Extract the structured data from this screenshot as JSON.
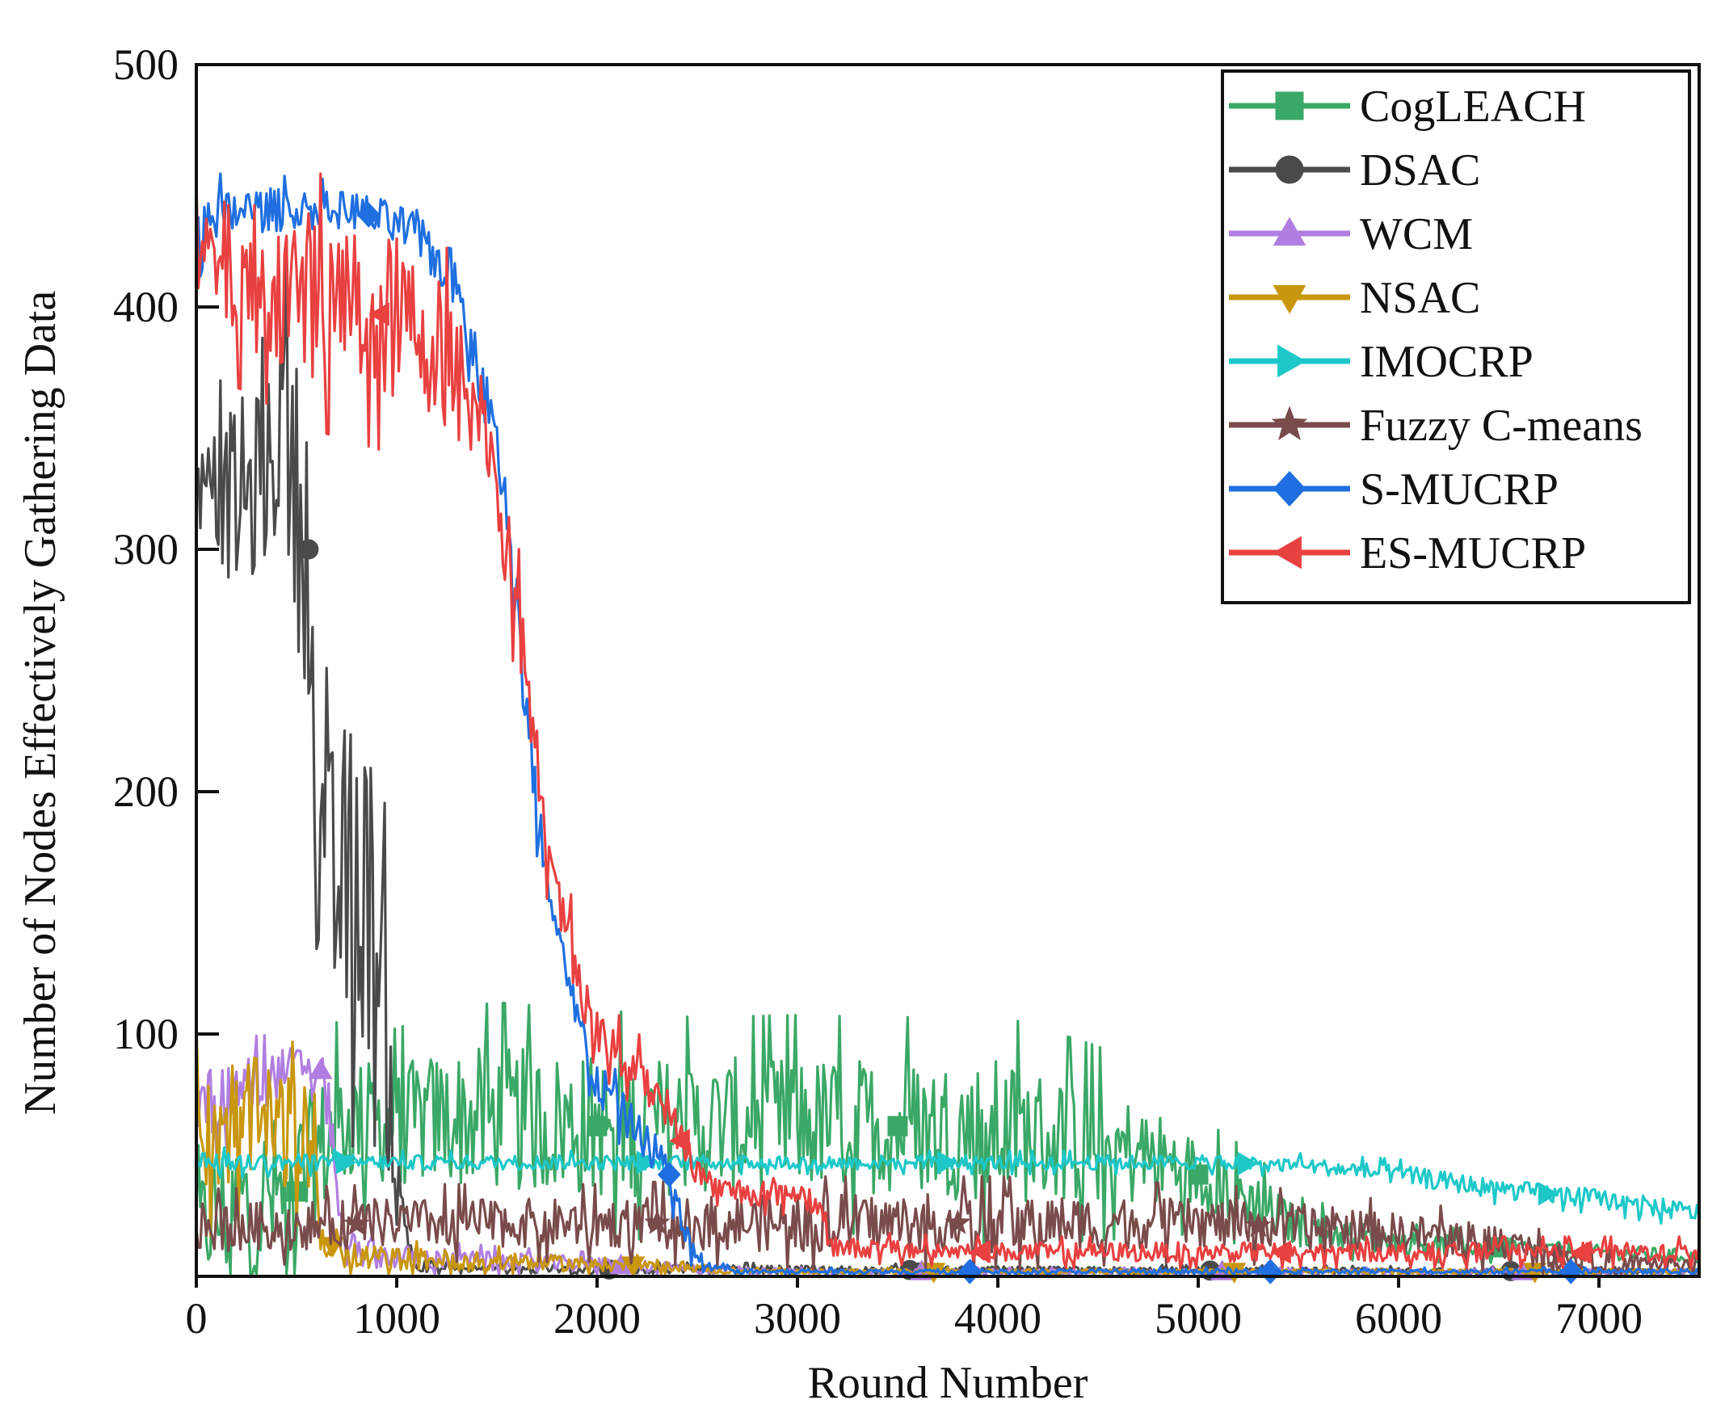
{
  "chart_data": {
    "type": "line",
    "xlabel": "Round Number",
    "ylabel": "Number of Nodes Effectively Gathering Data",
    "xlim": [
      0,
      7500
    ],
    "ylim": [
      0,
      500
    ],
    "xticks": [
      0,
      1000,
      2000,
      3000,
      4000,
      5000,
      6000,
      7000
    ],
    "yticks": [
      100,
      200,
      300,
      400,
      500
    ],
    "grid": false,
    "legend_position": "top-right",
    "series": [
      {
        "name": "CogLEACH",
        "color": "#3aa866",
        "marker": "square",
        "x": [
          0,
          100,
          300,
          500,
          600,
          700,
          800,
          1000,
          1200,
          1500,
          1800,
          2000,
          2500,
          3000,
          3500,
          4000,
          4500,
          4800,
          5000,
          5300,
          5500,
          6000,
          6500,
          7000,
          7500
        ],
        "y": [
          20,
          25,
          30,
          35,
          50,
          60,
          65,
          62,
          65,
          65,
          63,
          62,
          62,
          63,
          62,
          60,
          55,
          48,
          42,
          30,
          20,
          14,
          12,
          10,
          8
        ],
        "noise": [
          20,
          30,
          35,
          35,
          30,
          28,
          25,
          25,
          28,
          30,
          30,
          30,
          28,
          28,
          28,
          30,
          25,
          20,
          15,
          12,
          8,
          5,
          4,
          3,
          3
        ]
      },
      {
        "name": "DSAC",
        "color": "#4a4a4a",
        "marker": "circle",
        "x": [
          0,
          250,
          350,
          420,
          500,
          560,
          600,
          700,
          800,
          900,
          960,
          1000,
          1100,
          7500
        ],
        "y": [
          325,
          320,
          330,
          355,
          320,
          300,
          150,
          160,
          165,
          150,
          90,
          35,
          3,
          2
        ],
        "noise": [
          15,
          45,
          35,
          50,
          60,
          60,
          55,
          65,
          70,
          60,
          50,
          20,
          2,
          1
        ]
      },
      {
        "name": "WCM",
        "color": "#b07ee0",
        "marker": "triangle-up",
        "x": [
          0,
          300,
          550,
          620,
          680,
          720,
          800,
          1000,
          1500,
          2000,
          2500,
          3000,
          7500
        ],
        "y": [
          70,
          80,
          88,
          85,
          60,
          20,
          10,
          8,
          6,
          5,
          3,
          2,
          2
        ],
        "noise": [
          15,
          12,
          8,
          10,
          12,
          8,
          6,
          5,
          4,
          3,
          2,
          1,
          1
        ]
      },
      {
        "name": "NSAC",
        "color": "#c9970e",
        "marker": "triangle-down",
        "x": [
          0,
          200,
          400,
          580,
          620,
          800,
          1500,
          2000,
          2500,
          2600,
          7500
        ],
        "y": [
          60,
          65,
          62,
          55,
          15,
          8,
          6,
          5,
          4,
          2,
          2
        ],
        "noise": [
          28,
          28,
          25,
          22,
          10,
          5,
          4,
          3,
          2,
          1,
          1
        ]
      },
      {
        "name": "IMOCRP",
        "color": "#1ec8c8",
        "marker": "triangle-right",
        "x": [
          0,
          1000,
          2000,
          3000,
          4000,
          5000,
          5500,
          6000,
          6500,
          7000,
          7500
        ],
        "y": [
          47,
          47,
          47,
          47,
          47,
          47,
          46,
          42,
          36,
          32,
          26
        ],
        "noise": [
          4,
          3,
          3,
          3,
          3,
          3,
          3,
          4,
          4,
          4,
          4
        ]
      },
      {
        "name": "Fuzzy C-means",
        "color": "#7a4b4b",
        "marker": "star",
        "x": [
          0,
          1000,
          2000,
          3000,
          4000,
          5000,
          5500,
          6000,
          6500,
          6700,
          7000,
          7500
        ],
        "y": [
          20,
          22,
          22,
          22,
          22,
          22,
          20,
          18,
          14,
          10,
          6,
          5
        ],
        "noise": [
          10,
          10,
          10,
          12,
          12,
          10,
          10,
          8,
          8,
          6,
          4,
          3
        ]
      },
      {
        "name": "S-MUCRP",
        "color": "#1f6fe0",
        "marker": "diamond",
        "x": [
          0,
          200,
          600,
          800,
          1100,
          1300,
          1450,
          1550,
          1650,
          1750,
          1850,
          2000,
          2200,
          2350,
          2450,
          2550,
          2700,
          7500
        ],
        "y": [
          425,
          440,
          440,
          440,
          430,
          410,
          360,
          320,
          230,
          160,
          120,
          80,
          60,
          45,
          15,
          4,
          2,
          2
        ],
        "noise": [
          18,
          10,
          8,
          8,
          10,
          12,
          14,
          15,
          15,
          12,
          10,
          10,
          8,
          8,
          6,
          2,
          1,
          1
        ]
      },
      {
        "name": "ES-MUCRP",
        "color": "#e94040",
        "marker": "triangle-left",
        "x": [
          0,
          200,
          600,
          1000,
          1200,
          1450,
          1550,
          1650,
          1750,
          1850,
          2000,
          2200,
          2350,
          2450,
          2600,
          3000,
          3100,
          3200,
          4000,
          5000,
          6000,
          7000,
          7500
        ],
        "y": [
          420,
          415,
          405,
          395,
          385,
          350,
          300,
          250,
          170,
          140,
          100,
          85,
          70,
          50,
          35,
          35,
          30,
          12,
          10,
          10,
          10,
          10,
          10
        ],
        "noise": [
          22,
          30,
          35,
          35,
          30,
          25,
          20,
          18,
          15,
          15,
          10,
          10,
          8,
          8,
          6,
          6,
          6,
          4,
          4,
          4,
          4,
          4,
          4
        ]
      }
    ]
  }
}
